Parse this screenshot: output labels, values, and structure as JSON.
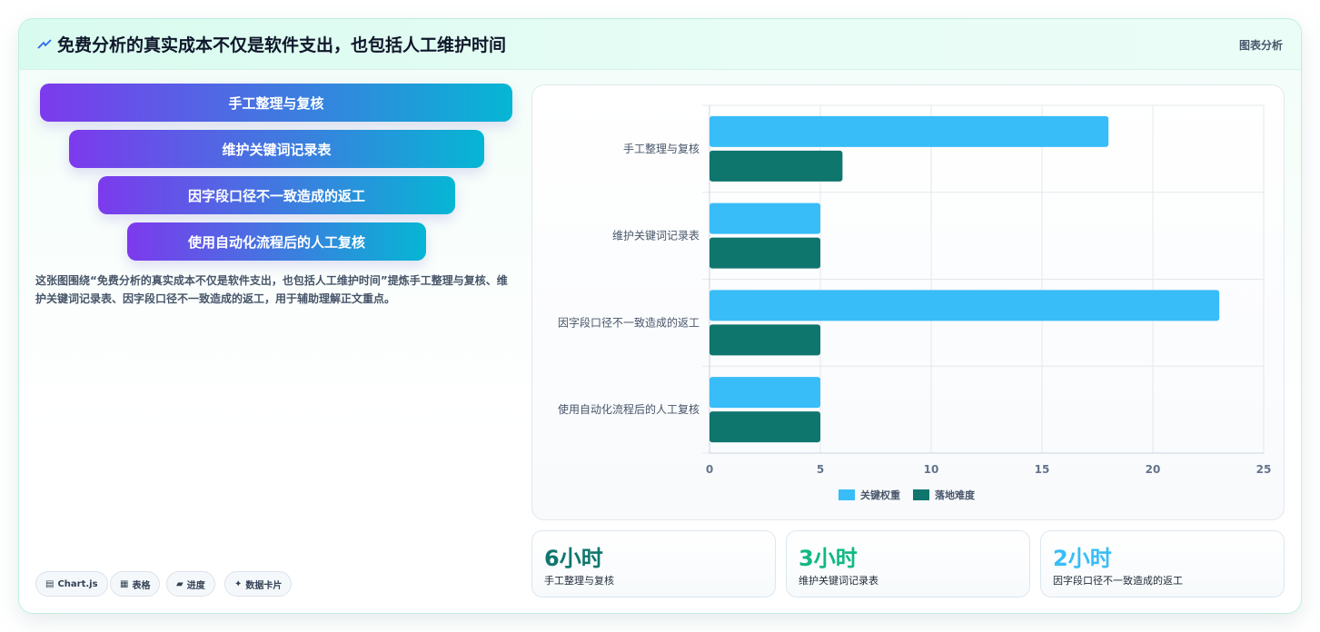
{
  "header": {
    "title": "免费分析的真实成本不仅是软件支出，也包括人工维护时间",
    "tag": "图表分析"
  },
  "funnel": [
    "手工整理与复核",
    "维护关键词记录表",
    "因字段口径不一致造成的返工",
    "使用自动化流程后的人工复核"
  ],
  "description": "这张图围绕“免费分析的真实成本不仅是软件支出，也包括人工维护时间”提炼手工整理与复核、维护关键词记录表、因字段口径不一致造成的返工，用于辅助理解正文重点。",
  "chips": [
    {
      "icon": "chart-icon",
      "glyph": "▤",
      "label": "Chart.js"
    },
    {
      "icon": "table-icon",
      "glyph": "▦",
      "label": "表格"
    },
    {
      "icon": "progress-icon",
      "glyph": "▰",
      "label": "进度"
    },
    {
      "icon": "sparkle-icon",
      "glyph": "✦",
      "label": "数据卡片"
    }
  ],
  "chart_data": {
    "type": "bar",
    "orientation": "horizontal",
    "categories": [
      "手工整理与复核",
      "维护关键词记录表",
      "因字段口径不一致造成的返工",
      "使用自动化流程后的人工复核"
    ],
    "series": [
      {
        "name": "关键权重",
        "values": [
          18,
          5,
          23,
          5
        ],
        "color": "#38bdf8"
      },
      {
        "name": "落地难度",
        "values": [
          6,
          5,
          5,
          5
        ],
        "color": "#0f766e"
      }
    ],
    "xlim": [
      0,
      25
    ],
    "xticks": [
      "0",
      "5",
      "10",
      "15",
      "20",
      "25"
    ],
    "grid": true,
    "legend": "bottom"
  },
  "stats": [
    {
      "value": "6小时",
      "label": "手工整理与复核",
      "color": "#0f766e"
    },
    {
      "value": "3小时",
      "label": "维护关键词记录表",
      "color": "#10b981"
    },
    {
      "value": "2小时",
      "label": "因字段口径不一致造成的返工",
      "color": "#38bdf8"
    }
  ]
}
